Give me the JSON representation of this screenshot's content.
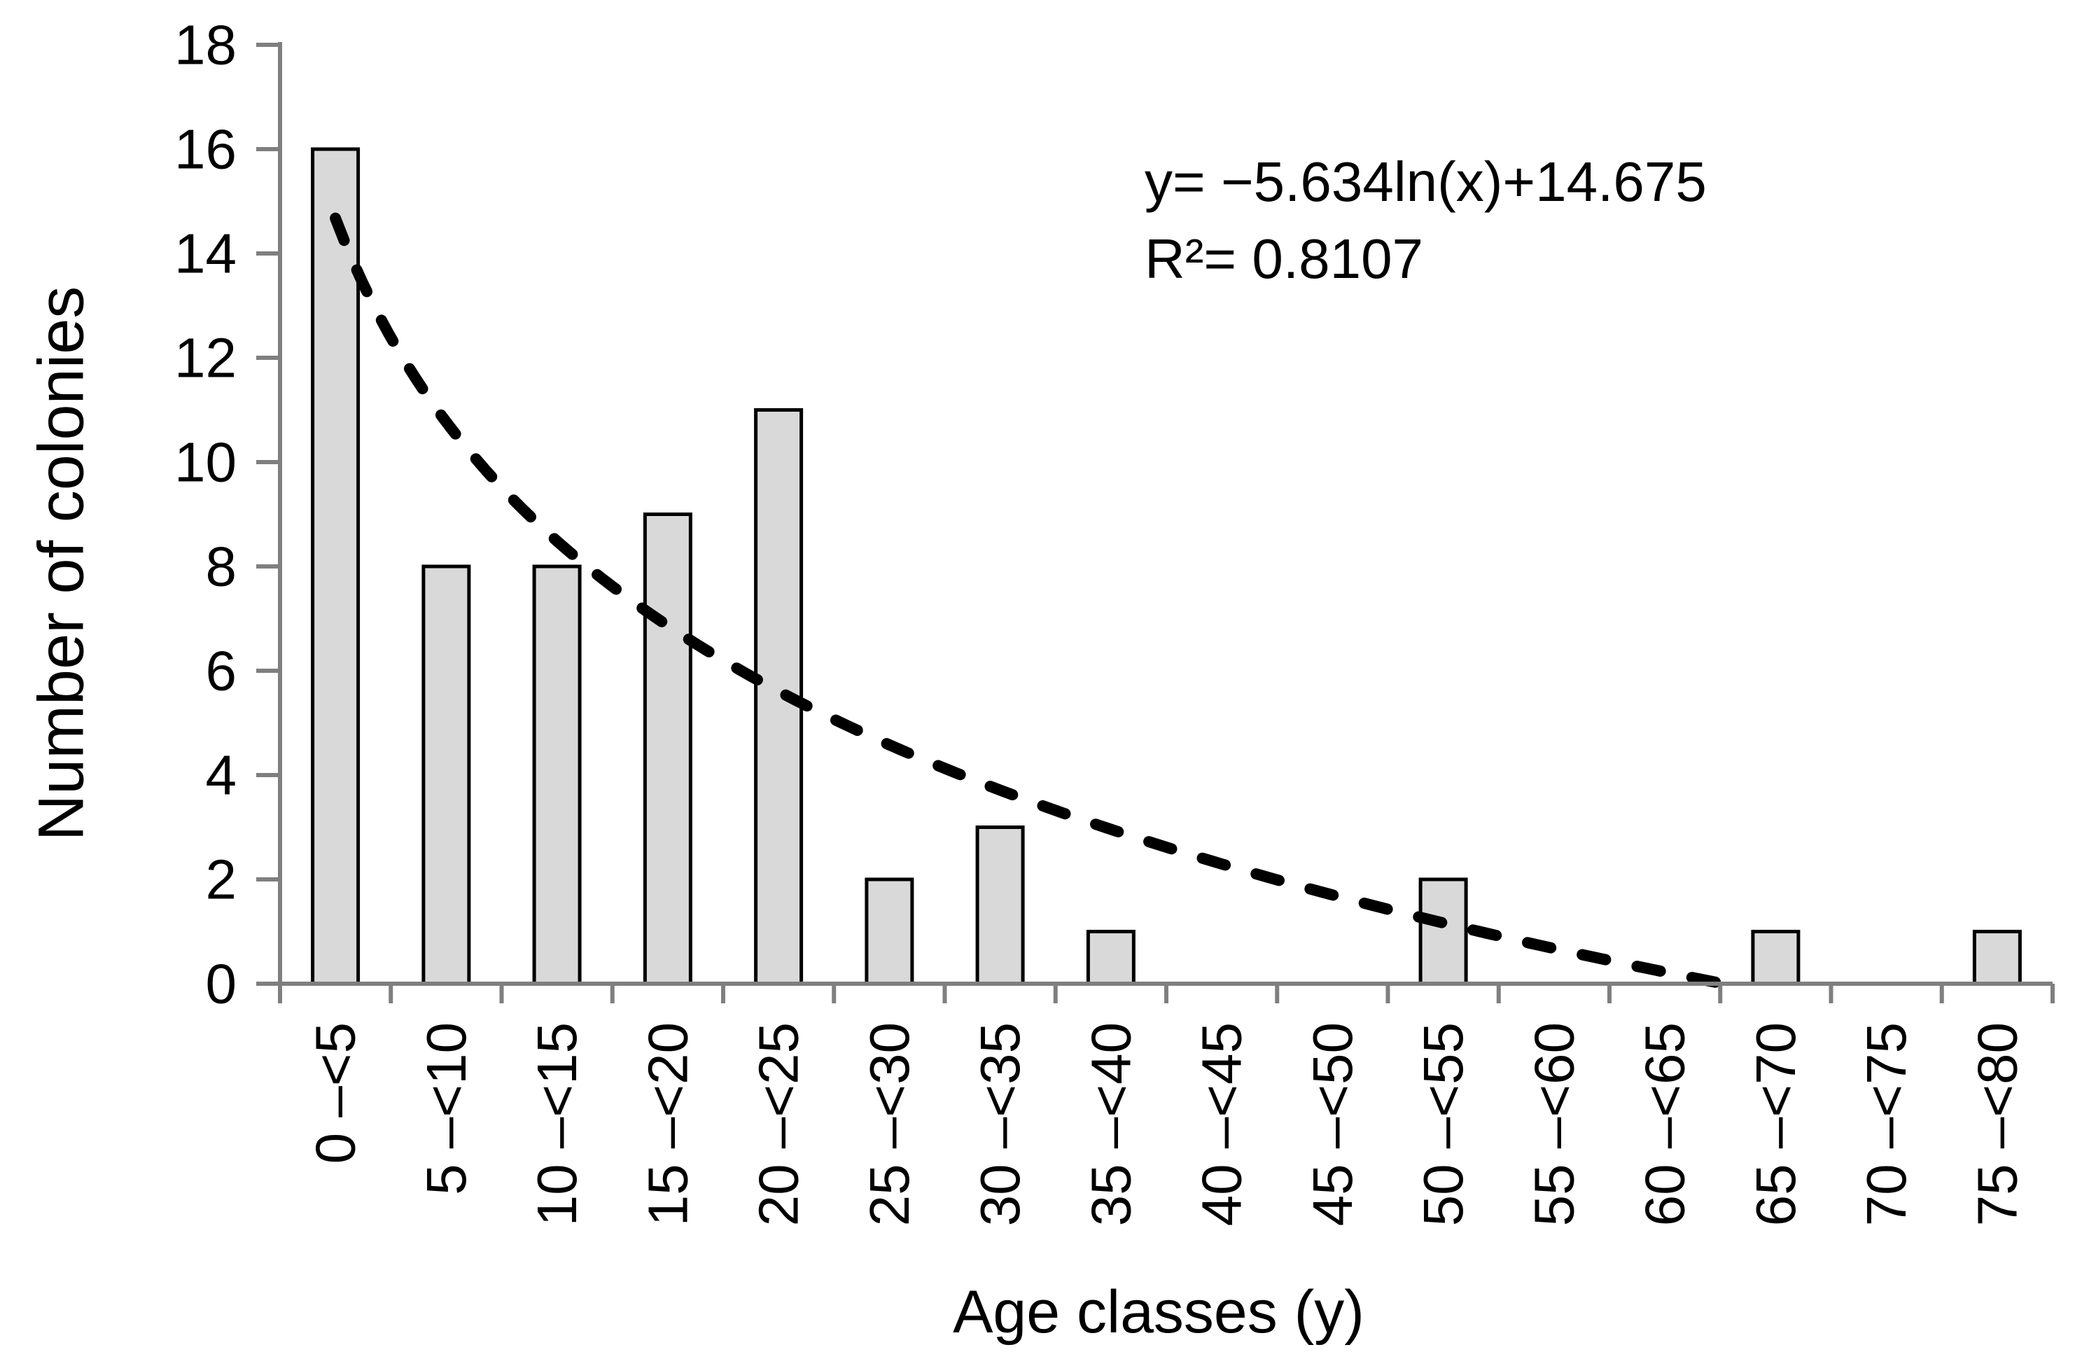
{
  "figure": {
    "background": "#ffffff"
  },
  "chart_data": {
    "type": "bar",
    "title": "",
    "xlabel": "Age classes (y)",
    "ylabel": "Number of colonies",
    "categories": [
      "0 –<5",
      "5 –<10",
      "10 –<15",
      "15 –<20",
      "20 –<25",
      "25 –<30",
      "30 –<35",
      "35 –<40",
      "40 –<45",
      "45 –<50",
      "50 –<55",
      "55 –<60",
      "60 –<65",
      "65 –<70",
      "70 –<75",
      "75 –<80"
    ],
    "values": [
      16,
      8,
      8,
      9,
      11,
      2,
      3,
      1,
      0,
      0,
      2,
      0,
      0,
      1,
      0,
      1
    ],
    "ylim": [
      0,
      18
    ],
    "y_ticks": [
      0,
      2,
      4,
      6,
      8,
      10,
      12,
      14,
      16,
      18
    ],
    "grid": false,
    "legend": "none",
    "bar_fill": "#d9d9d9",
    "bar_stroke": "#000000",
    "axis_color": "#7f7f7f",
    "text_color": "#000000",
    "trendline": {
      "kind": "logarithmic",
      "coef_ln": -5.634,
      "intercept": 14.675,
      "style": "dashed",
      "color": "#000000"
    },
    "annotation": {
      "equation": "y= −5.634ln(x)+14.675",
      "r2": "R²= 0.8107"
    }
  }
}
